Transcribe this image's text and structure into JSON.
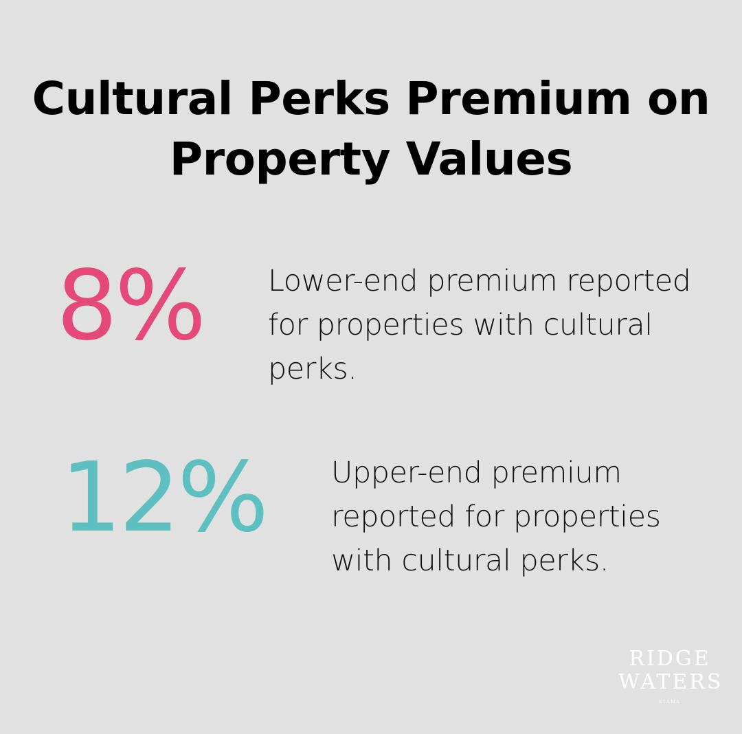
{
  "title": "Cultural Perks Premium on Property Values",
  "stats": [
    {
      "value": "8%",
      "description": "Lower-end premium reported for properties with cultural perks.",
      "color": "#e4497a"
    },
    {
      "value": "12%",
      "description": "Upper-end premium reported for properties with cultural perks.",
      "color": "#5dbfc0"
    }
  ],
  "logo": {
    "line1": "RIDGE",
    "line2": "WATERS",
    "line3": "KIAMA"
  }
}
